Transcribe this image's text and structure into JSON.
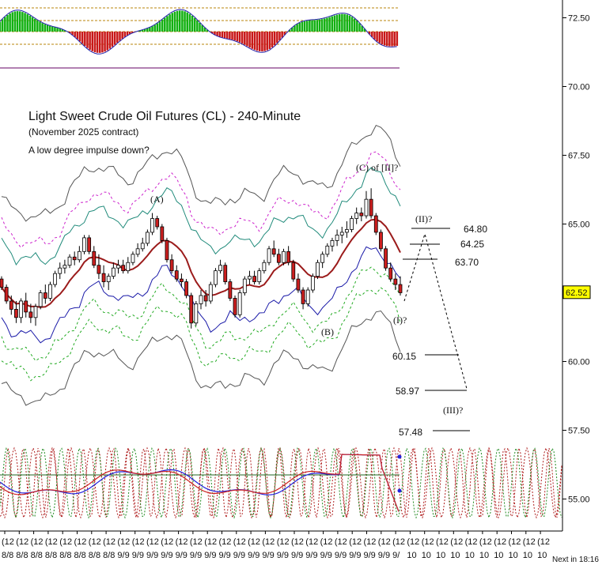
{
  "chart_data": {
    "type": "candlestick",
    "title": "Light Sweet Crude Oil Futures (CL) - 240-Minute",
    "subtitle": "(November 2025 contract)",
    "annotation": "A low degree impulse down?",
    "y_ticks": [
      72.5,
      70.0,
      67.5,
      65.0,
      60.0,
      57.5,
      55.0
    ],
    "y_tick_labels": [
      "72.50",
      "70.00",
      "67.50",
      "65.00",
      "60.00",
      "57.50",
      "55.00"
    ],
    "ylim": [
      54.1,
      73.4
    ],
    "last_price": 62.52,
    "last_price_label": "62.52",
    "x_tick_label": "(12",
    "x_date_labels": [
      "8/8",
      "8/8",
      "8/8",
      "8/8",
      "8/8",
      "8/8",
      "8/8",
      "8/8",
      "9/9",
      "9/9",
      "9/9",
      "9/9",
      "9/9",
      "9/9",
      "9/9",
      "9/9",
      "9/9",
      "9/9",
      "9/9",
      "9/9",
      "9/9",
      "9/9",
      "9/9",
      "9/9",
      "9/9",
      "9/9",
      "9/9",
      "9/",
      "10",
      "10",
      "10",
      "10",
      "10",
      "10",
      "10",
      "10",
      "10",
      "10"
    ],
    "next_bar_label": "Next in 18:16",
    "candles": [
      [
        63.0,
        63.1,
        62.6,
        62.7
      ],
      [
        62.7,
        62.8,
        62.1,
        62.2
      ],
      [
        62.2,
        62.4,
        61.7,
        61.9
      ],
      [
        61.9,
        62.2,
        61.4,
        61.6
      ],
      [
        61.6,
        62.3,
        61.4,
        62.2
      ],
      [
        62.2,
        62.5,
        61.6,
        61.8
      ],
      [
        61.8,
        62.1,
        61.4,
        61.6
      ],
      [
        61.6,
        62.1,
        61.3,
        62.0
      ],
      [
        62.0,
        62.6,
        61.9,
        62.5
      ],
      [
        62.5,
        62.8,
        62.1,
        62.3
      ],
      [
        62.3,
        62.9,
        62.2,
        62.8
      ],
      [
        62.8,
        63.3,
        62.7,
        63.2
      ],
      [
        63.2,
        63.6,
        63.0,
        63.4
      ],
      [
        63.4,
        63.7,
        63.2,
        63.5
      ],
      [
        63.5,
        63.9,
        63.4,
        63.8
      ],
      [
        63.8,
        64.0,
        63.5,
        63.7
      ],
      [
        63.7,
        64.2,
        63.6,
        64.0
      ],
      [
        64.0,
        64.6,
        63.9,
        64.5
      ],
      [
        64.5,
        64.6,
        63.9,
        64.0
      ],
      [
        64.0,
        64.2,
        63.4,
        63.5
      ],
      [
        63.5,
        63.9,
        63.0,
        63.2
      ],
      [
        63.2,
        63.5,
        62.7,
        62.9
      ],
      [
        62.9,
        63.2,
        62.6,
        63.1
      ],
      [
        63.1,
        63.6,
        63.0,
        63.4
      ],
      [
        63.4,
        63.7,
        63.2,
        63.5
      ],
      [
        63.5,
        63.7,
        63.2,
        63.3
      ],
      [
        63.3,
        63.8,
        63.2,
        63.6
      ],
      [
        63.6,
        64.0,
        63.5,
        63.9
      ],
      [
        63.9,
        64.3,
        63.8,
        64.1
      ],
      [
        64.1,
        64.5,
        64.0,
        64.3
      ],
      [
        64.3,
        64.8,
        64.2,
        64.7
      ],
      [
        64.7,
        65.4,
        64.6,
        65.2
      ],
      [
        65.2,
        65.3,
        64.8,
        64.9
      ],
      [
        64.9,
        65.0,
        64.3,
        64.4
      ],
      [
        64.4,
        64.5,
        63.6,
        63.7
      ],
      [
        63.7,
        63.9,
        63.2,
        63.3
      ],
      [
        63.3,
        63.5,
        62.9,
        63.0
      ],
      [
        63.0,
        63.2,
        62.7,
        62.9
      ],
      [
        62.9,
        63.0,
        62.3,
        62.4
      ],
      [
        62.4,
        62.5,
        61.2,
        61.4
      ],
      [
        61.4,
        62.2,
        61.3,
        62.1
      ],
      [
        62.1,
        62.6,
        61.9,
        62.4
      ],
      [
        62.4,
        62.6,
        62.0,
        62.2
      ],
      [
        62.2,
        62.9,
        62.1,
        62.8
      ],
      [
        62.8,
        63.4,
        62.7,
        63.3
      ],
      [
        63.3,
        63.7,
        63.2,
        63.5
      ],
      [
        63.5,
        63.6,
        62.8,
        62.9
      ],
      [
        62.9,
        63.0,
        62.2,
        62.3
      ],
      [
        62.3,
        62.4,
        61.6,
        61.7
      ],
      [
        61.7,
        62.6,
        61.6,
        62.5
      ],
      [
        62.5,
        63.1,
        62.4,
        63.0
      ],
      [
        63.0,
        63.3,
        62.8,
        63.1
      ],
      [
        63.1,
        63.3,
        62.8,
        62.9
      ],
      [
        62.9,
        63.4,
        62.8,
        63.3
      ],
      [
        63.3,
        63.7,
        63.2,
        63.6
      ],
      [
        63.6,
        64.2,
        63.5,
        64.1
      ],
      [
        64.1,
        64.4,
        63.8,
        63.9
      ],
      [
        63.9,
        64.1,
        63.5,
        63.6
      ],
      [
        63.6,
        64.1,
        63.5,
        64.0
      ],
      [
        64.0,
        64.2,
        63.5,
        63.6
      ],
      [
        63.6,
        63.7,
        62.9,
        63.0
      ],
      [
        63.0,
        63.2,
        62.5,
        62.6
      ],
      [
        62.6,
        62.7,
        61.9,
        62.1
      ],
      [
        62.1,
        62.7,
        62.0,
        62.6
      ],
      [
        62.6,
        63.2,
        62.5,
        63.1
      ],
      [
        63.1,
        63.7,
        63.0,
        63.6
      ],
      [
        63.6,
        64.0,
        63.4,
        63.9
      ],
      [
        63.9,
        64.3,
        63.8,
        64.2
      ],
      [
        64.2,
        64.5,
        64.0,
        64.4
      ],
      [
        64.4,
        64.8,
        64.2,
        64.6
      ],
      [
        64.6,
        64.9,
        64.3,
        64.7
      ],
      [
        64.7,
        65.1,
        64.5,
        64.8
      ],
      [
        64.8,
        65.3,
        64.7,
        65.2
      ],
      [
        65.2,
        65.6,
        65.0,
        65.4
      ],
      [
        65.4,
        65.6,
        65.1,
        65.3
      ],
      [
        65.3,
        66.2,
        65.2,
        65.9
      ],
      [
        65.9,
        66.3,
        65.2,
        65.3
      ],
      [
        65.3,
        65.4,
        64.6,
        64.7
      ],
      [
        64.7,
        64.8,
        64.0,
        64.1
      ],
      [
        64.1,
        64.2,
        63.3,
        63.4
      ],
      [
        63.4,
        63.6,
        62.9,
        63.0
      ],
      [
        63.0,
        63.2,
        62.6,
        62.8
      ],
      [
        62.8,
        63.1,
        62.4,
        62.5
      ]
    ],
    "wave_labels": [
      "(A)",
      "(C) of [II]?",
      "(B)",
      "(II)?",
      "(I)?",
      "(III)?"
    ],
    "target_levels": [
      64.8,
      64.25,
      63.7,
      60.15,
      58.97,
      57.48
    ],
    "target_labels": [
      "64.80",
      "64.25",
      "63.70",
      "60.15",
      "58.97",
      "57.48"
    ]
  },
  "colors": {
    "candle_up": "#ffffff",
    "candle_down": "#cc1f1f",
    "moving_average": "#9b1b1b",
    "band_blue": "#1a1aa8",
    "band_teal": "#1f8a7a",
    "band_magenta": "#cc22cc",
    "band_green": "#22aa22",
    "band_gray": "#555555",
    "histogram_up": "#11b011",
    "histogram_down": "#c81818",
    "cycle_red": "#b02020",
    "cycle_green": "#208a20",
    "osc_blue": "#2222dd",
    "osc_red": "#cc2222",
    "price_tag_bg": "#ffff00"
  }
}
